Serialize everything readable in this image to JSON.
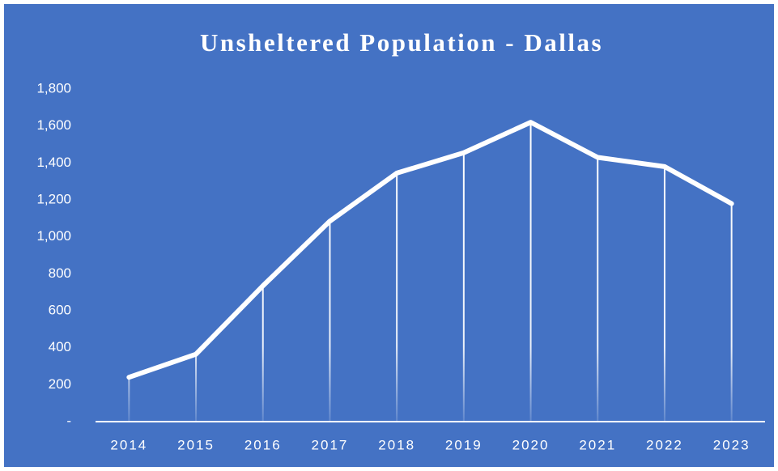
{
  "chart_data": {
    "type": "line",
    "title": "Unsheltered Population - Dallas",
    "categories": [
      "2014",
      "2015",
      "2016",
      "2017",
      "2018",
      "2019",
      "2020",
      "2021",
      "2022",
      "2023"
    ],
    "values": [
      240,
      365,
      735,
      1085,
      1345,
      1455,
      1620,
      1430,
      1380,
      1180
    ],
    "color": "#ffffff",
    "background": "#4472c4",
    "ylim": [
      0,
      1800
    ],
    "yticks": [
      {
        "value": 0,
        "label": "-"
      },
      {
        "value": 200,
        "label": "200"
      },
      {
        "value": 400,
        "label": "400"
      },
      {
        "value": 600,
        "label": "600"
      },
      {
        "value": 800,
        "label": "800"
      },
      {
        "value": 1000,
        "label": "1,000"
      },
      {
        "value": 1200,
        "label": "1,200"
      },
      {
        "value": 1400,
        "label": "1,400"
      },
      {
        "value": 1600,
        "label": "1,600"
      },
      {
        "value": 1800,
        "label": "1,800"
      }
    ],
    "grid": false
  }
}
